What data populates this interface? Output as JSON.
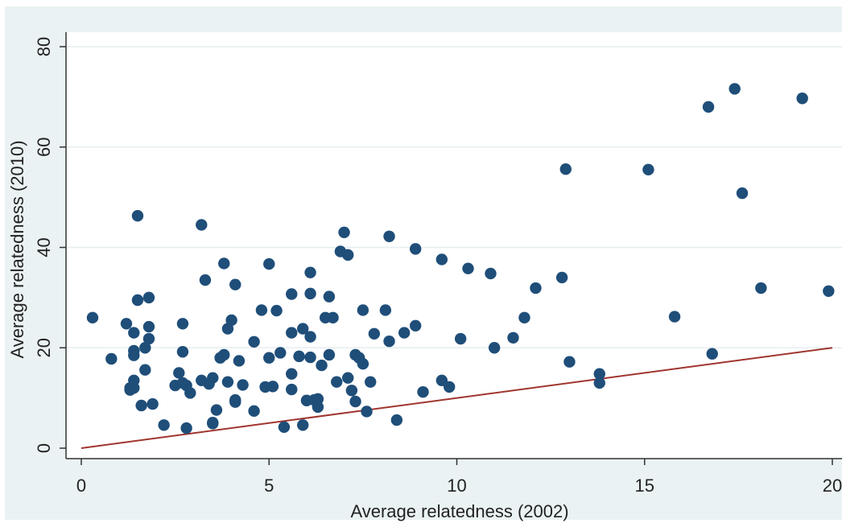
{
  "chart_data": {
    "type": "scatter",
    "xlabel": "Average relatedness (2002)",
    "ylabel": "Average relatedness (2010)",
    "xlim": [
      0,
      20
    ],
    "ylim": [
      0,
      80
    ],
    "xticks": [
      0,
      5,
      10,
      15,
      20
    ],
    "yticks": [
      0,
      20,
      40,
      60,
      80
    ],
    "x_tick_labels": [
      "0",
      "5",
      "10",
      "15",
      "20"
    ],
    "y_tick_labels": [
      "0",
      "20",
      "40",
      "60",
      "80"
    ],
    "grid": "horizontal",
    "reference_line": {
      "from": [
        0,
        0
      ],
      "to": [
        20,
        20
      ],
      "color": "#a0352f"
    },
    "marker_color": "#1f4e79",
    "points": [
      [
        0.3,
        26
      ],
      [
        0.8,
        17.8
      ],
      [
        1.2,
        24.8
      ],
      [
        1.3,
        12
      ],
      [
        1.3,
        11.6
      ],
      [
        1.4,
        23
      ],
      [
        1.4,
        19.4
      ],
      [
        1.4,
        18.5
      ],
      [
        1.4,
        13.5
      ],
      [
        1.4,
        12
      ],
      [
        1.5,
        46.3
      ],
      [
        1.5,
        29.5
      ],
      [
        1.6,
        8.5
      ],
      [
        1.7,
        15.6
      ],
      [
        1.7,
        20
      ],
      [
        1.8,
        30
      ],
      [
        1.8,
        24.2
      ],
      [
        1.8,
        21.8
      ],
      [
        1.9,
        8.8
      ],
      [
        2.2,
        4.6
      ],
      [
        2.5,
        12.5
      ],
      [
        2.6,
        15
      ],
      [
        2.7,
        13
      ],
      [
        2.7,
        24.8
      ],
      [
        2.7,
        19.2
      ],
      [
        2.8,
        12.5
      ],
      [
        2.8,
        4
      ],
      [
        2.9,
        11
      ],
      [
        3.2,
        44.5
      ],
      [
        3.2,
        13.5
      ],
      [
        3.3,
        33.5
      ],
      [
        3.4,
        12.8
      ],
      [
        3.5,
        14
      ],
      [
        3.5,
        4.9
      ],
      [
        3.5,
        5.1
      ],
      [
        3.6,
        7.6
      ],
      [
        3.7,
        18
      ],
      [
        3.8,
        36.8
      ],
      [
        3.8,
        18.6
      ],
      [
        3.9,
        23.8
      ],
      [
        3.9,
        13.2
      ],
      [
        4,
        25.5
      ],
      [
        4.1,
        9.6
      ],
      [
        4.1,
        9.2
      ],
      [
        4.1,
        32.6
      ],
      [
        4.2,
        17.4
      ],
      [
        4.3,
        12.6
      ],
      [
        4.6,
        21.2
      ],
      [
        4.6,
        7.4
      ],
      [
        4.8,
        27.5
      ],
      [
        4.9,
        12.2
      ],
      [
        5,
        36.7
      ],
      [
        5,
        18
      ],
      [
        5.1,
        12.3
      ],
      [
        5.2,
        27.4
      ],
      [
        5.3,
        19
      ],
      [
        5.4,
        4.2
      ],
      [
        5.6,
        30.7
      ],
      [
        5.6,
        23
      ],
      [
        5.6,
        14.8
      ],
      [
        5.6,
        11.7
      ],
      [
        5.8,
        18.3
      ],
      [
        5.9,
        23.8
      ],
      [
        5.9,
        4.6
      ],
      [
        6,
        9.5
      ],
      [
        6.1,
        35
      ],
      [
        6.1,
        30.8
      ],
      [
        6.1,
        22.2
      ],
      [
        6.1,
        18.1
      ],
      [
        6.2,
        9.6
      ],
      [
        6.3,
        9.8
      ],
      [
        6.3,
        8.2
      ],
      [
        6.4,
        16.5
      ],
      [
        6.5,
        26
      ],
      [
        6.6,
        30.2
      ],
      [
        6.6,
        18.6
      ],
      [
        6.7,
        26
      ],
      [
        6.8,
        13.2
      ],
      [
        6.9,
        39.2
      ],
      [
        7,
        43
      ],
      [
        7.1,
        38.5
      ],
      [
        7.1,
        14
      ],
      [
        7.2,
        11.5
      ],
      [
        7.3,
        9.3
      ],
      [
        7.3,
        18.6
      ],
      [
        7.4,
        18
      ],
      [
        7.5,
        27.5
      ],
      [
        7.5,
        16.8
      ],
      [
        7.6,
        7.3
      ],
      [
        7.7,
        13.2
      ],
      [
        7.8,
        22.8
      ],
      [
        8.1,
        27.5
      ],
      [
        8.2,
        42.2
      ],
      [
        8.2,
        21.3
      ],
      [
        8.4,
        5.6
      ],
      [
        8.6,
        23
      ],
      [
        8.9,
        39.7
      ],
      [
        8.9,
        24.4
      ],
      [
        9.1,
        11.2
      ],
      [
        9.6,
        37.6
      ],
      [
        9.6,
        13.5
      ],
      [
        9.8,
        12.2
      ],
      [
        10.1,
        21.8
      ],
      [
        10.3,
        35.8
      ],
      [
        10.9,
        34.8
      ],
      [
        11,
        20
      ],
      [
        11.5,
        22
      ],
      [
        11.8,
        26
      ],
      [
        12.1,
        31.9
      ],
      [
        12.8,
        34
      ],
      [
        12.9,
        55.6
      ],
      [
        13,
        17.2
      ],
      [
        13.8,
        13
      ],
      [
        13.8,
        14.8
      ],
      [
        15.1,
        55.5
      ],
      [
        15.8,
        26.2
      ],
      [
        16.7,
        68
      ],
      [
        16.8,
        18.8
      ],
      [
        17.4,
        71.6
      ],
      [
        17.6,
        50.8
      ],
      [
        18.1,
        31.9
      ],
      [
        19.2,
        69.7
      ],
      [
        19.9,
        31.3
      ]
    ]
  }
}
